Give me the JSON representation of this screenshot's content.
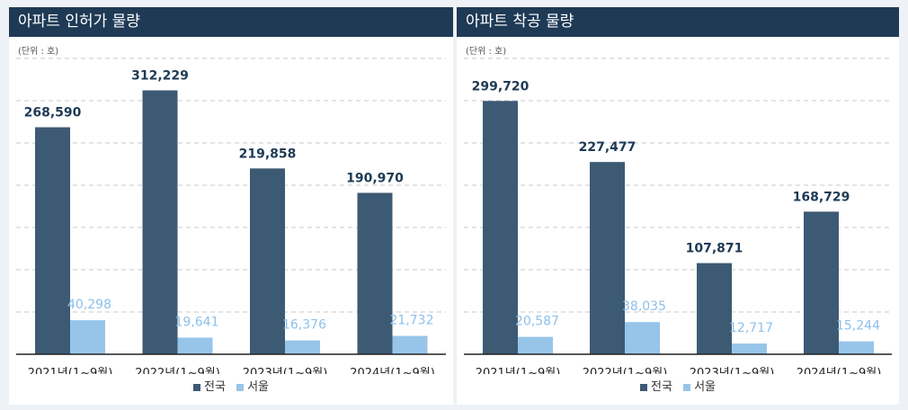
{
  "colors": {
    "header_bg": "#1e3a55",
    "national": "#3d5a74",
    "seoul": "#97c5ea",
    "national_label": "#1e3a55",
    "seoul_label": "#8ec0ea"
  },
  "panels": [
    {
      "title": "아파트 인허가 물량",
      "unit": "(단위 : 호)",
      "legend": [
        "전국",
        "서울"
      ]
    },
    {
      "title": "아파트 착공 물량",
      "unit": "(단위 : 호)",
      "legend": [
        "전국",
        "서울"
      ]
    }
  ],
  "chart_data": [
    {
      "type": "bar",
      "title": "아파트 인허가 물량",
      "unit": "(단위 : 호)",
      "categories": [
        "2021년(1~9월)",
        "2022년(1~9월)",
        "2023년(1~9월)",
        "2024년(1~9월)"
      ],
      "series": [
        {
          "name": "전국",
          "values": [
            268590,
            312229,
            219858,
            190970
          ],
          "labels": [
            "268,590",
            "312,229",
            "219,858",
            "190,970"
          ]
        },
        {
          "name": "서울",
          "values": [
            40298,
            19641,
            16376,
            21732
          ],
          "labels": [
            "40,298",
            "19,641",
            "16,376",
            "21,732"
          ]
        }
      ],
      "ylim": [
        0,
        350000
      ],
      "grid": true,
      "legend_position": "bottom"
    },
    {
      "type": "bar",
      "title": "아파트 착공 물량",
      "unit": "(단위 : 호)",
      "categories": [
        "2021년(1~9월)",
        "2022년(1~9월)",
        "2023년(1~9월)",
        "2024년(1~9월)"
      ],
      "series": [
        {
          "name": "전국",
          "values": [
            299720,
            227477,
            107871,
            168729
          ],
          "labels": [
            "299,720",
            "227,477",
            "107,871",
            "168,729"
          ]
        },
        {
          "name": "서울",
          "values": [
            20587,
            38035,
            12717,
            15244
          ],
          "labels": [
            "20,587",
            "38,035",
            "12,717",
            "15,244"
          ]
        }
      ],
      "ylim": [
        0,
        350000
      ],
      "grid": true,
      "legend_position": "bottom"
    }
  ]
}
